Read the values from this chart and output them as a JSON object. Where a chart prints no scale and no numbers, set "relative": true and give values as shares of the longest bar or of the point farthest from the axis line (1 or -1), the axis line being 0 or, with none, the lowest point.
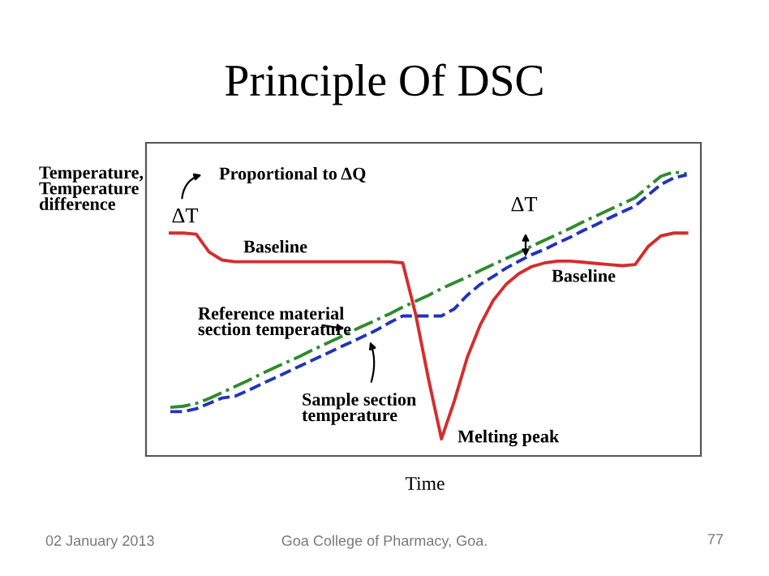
{
  "chart_data": {
    "type": "line",
    "title": "Principle Of DSC",
    "xlabel": "Time",
    "ylabel": "Temperature,\nTemperature\ndifference",
    "relative": true,
    "categories": [
      null,
      null,
      null,
      null,
      null,
      null,
      null,
      null,
      null,
      null,
      null,
      null,
      null,
      null,
      null,
      null,
      null,
      null,
      null,
      null,
      null,
      null,
      null,
      null,
      null,
      null,
      null,
      null,
      null,
      null,
      null,
      null,
      null,
      null,
      null,
      null,
      null,
      null,
      null,
      null,
      null
    ],
    "series": [
      {
        "color": "#d62c2c",
        "line_style": "solid",
        "values": [
          0.785,
          0.785,
          0.781,
          0.718,
          0.69,
          0.684,
          0.684,
          0.684,
          0.684,
          0.684,
          0.684,
          0.684,
          0.684,
          0.684,
          0.684,
          0.684,
          0.684,
          0.684,
          0.68,
          0.499,
          0.27,
          0.06,
          0.194,
          0.347,
          0.461,
          0.547,
          0.604,
          0.642,
          0.667,
          0.68,
          0.686,
          0.686,
          0.682,
          0.678,
          0.674,
          0.67,
          0.674,
          0.737,
          0.775,
          0.785,
          0.785
        ]
      },
      {
        "name": "Reference material\nsection temperature",
        "color": "#2e8b2e",
        "line_style": "dashdot",
        "values": [
          0.171,
          0.175,
          0.185,
          0.202,
          0.223,
          0.244,
          0.265,
          0.288,
          0.309,
          0.33,
          0.35,
          0.373,
          0.394,
          0.415,
          0.438,
          0.459,
          0.48,
          0.501,
          0.524,
          0.545,
          0.566,
          0.589,
          0.61,
          0.63,
          0.653,
          0.674,
          0.695,
          0.716,
          0.739,
          0.76,
          0.781,
          0.802,
          0.825,
          0.846,
          0.867,
          0.888,
          0.909,
          0.947,
          0.985,
          1.0,
          0.994
        ]
      },
      {
        "name": "Sample section\ntemperature",
        "color": "#2233bb",
        "line_style": "dashed",
        "values": [
          0.156,
          0.156,
          0.166,
          0.185,
          0.204,
          0.21,
          0.23,
          0.252,
          0.273,
          0.294,
          0.316,
          0.337,
          0.358,
          0.38,
          0.401,
          0.422,
          0.444,
          0.47,
          0.493,
          0.493,
          0.493,
          0.493,
          0.518,
          0.566,
          0.604,
          0.632,
          0.661,
          0.686,
          0.709,
          0.728,
          0.75,
          0.771,
          0.794,
          0.815,
          0.838,
          0.859,
          0.88,
          0.918,
          0.956,
          0.979,
          0.99
        ]
      }
    ],
    "annotations": [
      "Proportional to ΔQ",
      "ΔT",
      "ΔT",
      "Baseline",
      "Baseline",
      "Melting peak",
      "02 January 2013",
      "Goa College of Pharmacy, Goa.",
      "77"
    ],
    "legend": false,
    "grid": false,
    "marker": "none"
  }
}
